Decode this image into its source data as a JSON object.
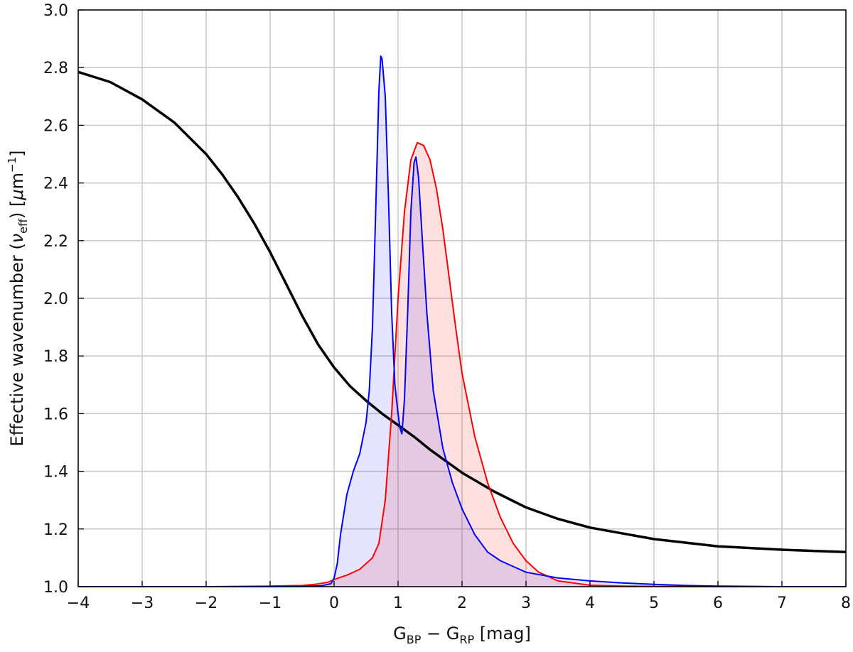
{
  "chart_data": {
    "type": "line",
    "title": "",
    "xlabel_parts": {
      "g1": "G",
      "s1": "BP",
      "mid": " − G",
      "s2": "RP",
      "end": " [mag]"
    },
    "ylabel_parts": {
      "pre": "Effective wavenumber (",
      "nu": "ν",
      "nusub": "eff",
      "mid": ") [",
      "mu": "μ",
      "m": "m",
      "sup": "−1",
      "end": "]"
    },
    "xlim": [
      -4,
      8
    ],
    "ylim": [
      1.0,
      3.0
    ],
    "xticks": [
      -4,
      -3,
      -2,
      -1,
      0,
      1,
      2,
      3,
      4,
      5,
      6,
      7,
      8
    ],
    "xtick_labels": [
      "−4",
      "−3",
      "−2",
      "−1",
      "0",
      "1",
      "2",
      "3",
      "4",
      "5",
      "6",
      "7",
      "8"
    ],
    "yticks": [
      1.0,
      1.2,
      1.4,
      1.6,
      1.8,
      2.0,
      2.2,
      2.4,
      2.6,
      2.8,
      3.0
    ],
    "ytick_labels": [
      "1.0",
      "1.2",
      "1.4",
      "1.6",
      "1.8",
      "2.0",
      "2.2",
      "2.4",
      "2.6",
      "2.8",
      "3.0"
    ],
    "grid": true,
    "series": [
      {
        "color": "#000000",
        "fill": false,
        "x": [
          -4.0,
          -3.5,
          -3.0,
          -2.5,
          -2.0,
          -1.75,
          -1.5,
          -1.25,
          -1.0,
          -0.75,
          -0.5,
          -0.25,
          0.0,
          0.25,
          0.5,
          0.75,
          1.0,
          1.25,
          1.5,
          2.0,
          2.5,
          3.0,
          3.5,
          4.0,
          5.0,
          6.0,
          7.0,
          8.0
        ],
        "y": [
          2.785,
          2.75,
          2.69,
          2.61,
          2.5,
          2.43,
          2.35,
          2.26,
          2.16,
          2.05,
          1.94,
          1.84,
          1.76,
          1.695,
          1.645,
          1.6,
          1.56,
          1.52,
          1.475,
          1.395,
          1.33,
          1.275,
          1.235,
          1.205,
          1.165,
          1.14,
          1.128,
          1.12
        ]
      },
      {
        "color": "#ff0000",
        "fill": true,
        "fill_color": "rgba(255,0,0,0.12)",
        "x": [
          -4.0,
          -2.0,
          -1.0,
          -0.5,
          -0.3,
          -0.1,
          0.0,
          0.2,
          0.4,
          0.6,
          0.7,
          0.8,
          0.9,
          1.0,
          1.1,
          1.2,
          1.3,
          1.4,
          1.5,
          1.6,
          1.7,
          1.8,
          1.9,
          2.0,
          2.2,
          2.4,
          2.6,
          2.8,
          3.0,
          3.2,
          3.5,
          4.0,
          4.5,
          5.0,
          6.0,
          7.0,
          8.0
        ],
        "y": [
          1.0,
          1.0,
          1.002,
          1.004,
          1.008,
          1.015,
          1.025,
          1.04,
          1.06,
          1.1,
          1.15,
          1.3,
          1.6,
          2.0,
          2.3,
          2.48,
          2.54,
          2.53,
          2.48,
          2.38,
          2.24,
          2.07,
          1.9,
          1.74,
          1.52,
          1.36,
          1.24,
          1.15,
          1.09,
          1.05,
          1.02,
          1.005,
          1.002,
          1.001,
          1.0,
          1.0,
          1.0
        ]
      },
      {
        "color": "#0000ff",
        "fill": true,
        "fill_color": "rgba(0,0,255,0.10)",
        "x": [
          -4.0,
          -2.0,
          -1.0,
          -0.5,
          -0.2,
          -0.05,
          0.0,
          0.05,
          0.1,
          0.2,
          0.3,
          0.4,
          0.5,
          0.55,
          0.6,
          0.65,
          0.7,
          0.73,
          0.75,
          0.8,
          0.85,
          0.9,
          0.95,
          1.0,
          1.03,
          1.06,
          1.1,
          1.15,
          1.2,
          1.25,
          1.28,
          1.32,
          1.38,
          1.45,
          1.55,
          1.7,
          1.85,
          2.0,
          2.2,
          2.4,
          2.6,
          2.8,
          3.0,
          3.5,
          4.0,
          4.5,
          5.0,
          5.5,
          6.0,
          7.0,
          8.0
        ],
        "y": [
          1.0,
          1.0,
          1.0,
          1.001,
          1.003,
          1.01,
          1.03,
          1.08,
          1.18,
          1.32,
          1.4,
          1.46,
          1.57,
          1.68,
          1.9,
          2.3,
          2.72,
          2.84,
          2.83,
          2.7,
          2.35,
          1.95,
          1.7,
          1.6,
          1.55,
          1.53,
          1.65,
          1.95,
          2.3,
          2.47,
          2.49,
          2.42,
          2.2,
          1.95,
          1.68,
          1.48,
          1.36,
          1.27,
          1.18,
          1.12,
          1.09,
          1.07,
          1.05,
          1.03,
          1.02,
          1.013,
          1.008,
          1.004,
          1.002,
          1.0,
          1.0
        ]
      }
    ]
  }
}
